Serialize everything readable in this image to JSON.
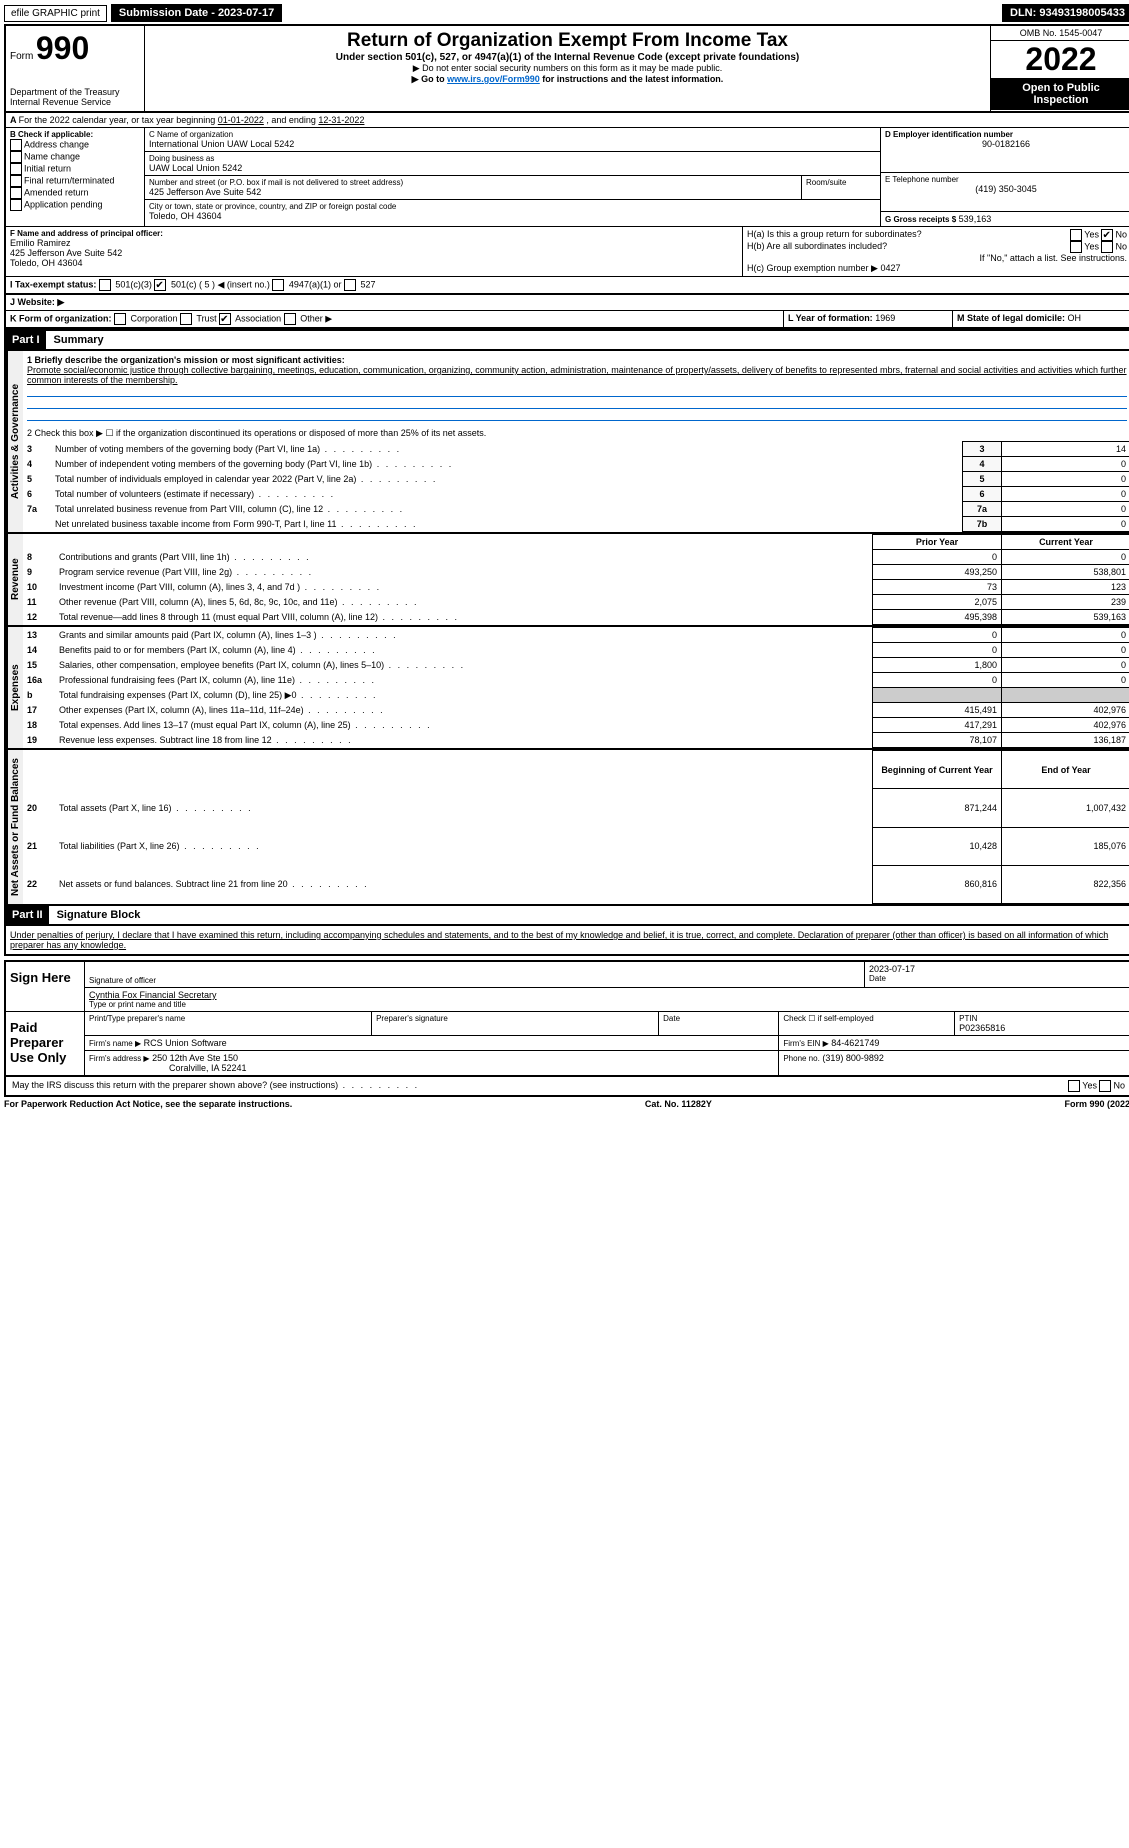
{
  "topbar": {
    "efile": "efile GRAPHIC print",
    "submission": "Submission Date - 2023-07-17",
    "dln": "DLN: 93493198005433"
  },
  "header": {
    "form_prefix": "Form",
    "form_number": "990",
    "dept": "Department of the Treasury",
    "irs": "Internal Revenue Service",
    "title": "Return of Organization Exempt From Income Tax",
    "subtitle": "Under section 501(c), 527, or 4947(a)(1) of the Internal Revenue Code (except private foundations)",
    "note1": "▶ Do not enter social security numbers on this form as it may be made public.",
    "note2_pre": "▶ Go to ",
    "note2_link": "www.irs.gov/Form990",
    "note2_post": " for instructions and the latest information.",
    "omb": "OMB No. 1545-0047",
    "year": "2022",
    "open": "Open to Public Inspection"
  },
  "lineA": {
    "text_pre": "For the 2022 calendar year, or tax year beginning ",
    "begin": "01-01-2022",
    "mid": " , and ending ",
    "end": "12-31-2022"
  },
  "boxB": {
    "label": "B Check if applicable:",
    "opts": [
      "Address change",
      "Name change",
      "Initial return",
      "Final return/terminated",
      "Amended return",
      "Application pending"
    ]
  },
  "boxC": {
    "label": "C Name of organization",
    "name": "International Union UAW Local 5242",
    "dba_label": "Doing business as",
    "dba": "UAW Local Union 5242",
    "street_label": "Number and street (or P.O. box if mail is not delivered to street address)",
    "street": "425 Jefferson Ave Suite 542",
    "room_label": "Room/suite",
    "city_label": "City or town, state or province, country, and ZIP or foreign postal code",
    "city": "Toledo, OH  43604"
  },
  "boxD": {
    "label": "D Employer identification number",
    "ein": "90-0182166"
  },
  "boxE": {
    "label": "E Telephone number",
    "phone": "(419) 350-3045"
  },
  "boxG": {
    "label": "G Gross receipts $",
    "amount": "539,163"
  },
  "boxF": {
    "label": "F Name and address of principal officer:",
    "name": "Emilio Ramirez",
    "addr1": "425 Jefferson Ave Suite 542",
    "addr2": "Toledo, OH  43604"
  },
  "boxH": {
    "a_label": "H(a)  Is this a group return for subordinates?",
    "yes": "Yes",
    "no": "No",
    "b_label": "H(b)  Are all subordinates included?",
    "b_note": "If \"No,\" attach a list. See instructions.",
    "c_label": "H(c)  Group exemption number ▶",
    "c_val": "0427"
  },
  "boxI": {
    "label": "I  Tax-exempt status:",
    "o1": "501(c)(3)",
    "o2": "501(c) ( 5 ) ◀ (insert no.)",
    "o3": "4947(a)(1) or",
    "o4": "527"
  },
  "boxJ": {
    "label": "J  Website: ▶"
  },
  "boxK": {
    "label": "K Form of organization:",
    "opts": [
      "Corporation",
      "Trust",
      "Association",
      "Other ▶"
    ]
  },
  "boxL": {
    "label": "L Year of formation:",
    "val": "1969"
  },
  "boxM": {
    "label": "M State of legal domicile:",
    "val": "OH"
  },
  "part1": {
    "header": "Part I",
    "title": "Summary",
    "q1_label": "1  Briefly describe the organization's mission or most significant activities:",
    "q1_text": "Promote social/economic justice through collective bargaining, meetings, education, communication, organizing, community action, administration, maintenance of property/assets, delivery of benefits to represented mbrs, fraternal and social activities and activities which further common interests of the membership.",
    "q2": "2   Check this box ▶ ☐  if the organization discontinued its operations or disposed of more than 25% of its net assets.",
    "rows_ag": [
      {
        "n": "3",
        "t": "Number of voting members of the governing body (Part VI, line 1a)",
        "k": "3",
        "v": "14"
      },
      {
        "n": "4",
        "t": "Number of independent voting members of the governing body (Part VI, line 1b)",
        "k": "4",
        "v": "0"
      },
      {
        "n": "5",
        "t": "Total number of individuals employed in calendar year 2022 (Part V, line 2a)",
        "k": "5",
        "v": "0"
      },
      {
        "n": "6",
        "t": "Total number of volunteers (estimate if necessary)",
        "k": "6",
        "v": "0"
      },
      {
        "n": "7a",
        "t": "Total unrelated business revenue from Part VIII, column (C), line 12",
        "k": "7a",
        "v": "0"
      },
      {
        "n": "",
        "t": "Net unrelated business taxable income from Form 990-T, Part I, line 11",
        "k": "7b",
        "v": "0"
      }
    ],
    "col_prior": "Prior Year",
    "col_curr": "Current Year",
    "rev_rows": [
      {
        "n": "8",
        "t": "Contributions and grants (Part VIII, line 1h)",
        "p": "0",
        "c": "0"
      },
      {
        "n": "9",
        "t": "Program service revenue (Part VIII, line 2g)",
        "p": "493,250",
        "c": "538,801"
      },
      {
        "n": "10",
        "t": "Investment income (Part VIII, column (A), lines 3, 4, and 7d )",
        "p": "73",
        "c": "123"
      },
      {
        "n": "11",
        "t": "Other revenue (Part VIII, column (A), lines 5, 6d, 8c, 9c, 10c, and 11e)",
        "p": "2,075",
        "c": "239"
      },
      {
        "n": "12",
        "t": "Total revenue—add lines 8 through 11 (must equal Part VIII, column (A), line 12)",
        "p": "495,398",
        "c": "539,163"
      }
    ],
    "exp_rows": [
      {
        "n": "13",
        "t": "Grants and similar amounts paid (Part IX, column (A), lines 1–3 )",
        "p": "0",
        "c": "0"
      },
      {
        "n": "14",
        "t": "Benefits paid to or for members (Part IX, column (A), line 4)",
        "p": "0",
        "c": "0"
      },
      {
        "n": "15",
        "t": "Salaries, other compensation, employee benefits (Part IX, column (A), lines 5–10)",
        "p": "1,800",
        "c": "0"
      },
      {
        "n": "16a",
        "t": "Professional fundraising fees (Part IX, column (A), line 11e)",
        "p": "0",
        "c": "0"
      },
      {
        "n": "b",
        "t": "Total fundraising expenses (Part IX, column (D), line 25) ▶0",
        "p": "",
        "c": ""
      },
      {
        "n": "17",
        "t": "Other expenses (Part IX, column (A), lines 11a–11d, 11f–24e)",
        "p": "415,491",
        "c": "402,976"
      },
      {
        "n": "18",
        "t": "Total expenses. Add lines 13–17 (must equal Part IX, column (A), line 25)",
        "p": "417,291",
        "c": "402,976"
      },
      {
        "n": "19",
        "t": "Revenue less expenses. Subtract line 18 from line 12",
        "p": "78,107",
        "c": "136,187"
      }
    ],
    "col_begin": "Beginning of Current Year",
    "col_end": "End of Year",
    "na_rows": [
      {
        "n": "20",
        "t": "Total assets (Part X, line 16)",
        "p": "871,244",
        "c": "1,007,432"
      },
      {
        "n": "21",
        "t": "Total liabilities (Part X, line 26)",
        "p": "10,428",
        "c": "185,076"
      },
      {
        "n": "22",
        "t": "Net assets or fund balances. Subtract line 21 from line 20",
        "p": "860,816",
        "c": "822,356"
      }
    ],
    "vtab_ag": "Activities & Governance",
    "vtab_rev": "Revenue",
    "vtab_exp": "Expenses",
    "vtab_na": "Net Assets or Fund Balances"
  },
  "part2": {
    "header": "Part II",
    "title": "Signature Block",
    "decl": "Under penalties of perjury, I declare that I have examined this return, including accompanying schedules and statements, and to the best of my knowledge and belief, it is true, correct, and complete. Declaration of preparer (other than officer) is based on all information of which preparer has any knowledge.",
    "sign_here": "Sign Here",
    "sig_officer": "Signature of officer",
    "sig_date": "2023-07-17",
    "date_label": "Date",
    "sig_name": "Cynthia Fox  Financial Secretary",
    "sig_name_label": "Type or print name and title",
    "paid": "Paid Preparer Use Only",
    "prep_name_label": "Print/Type preparer's name",
    "prep_sig_label": "Preparer's signature",
    "prep_date_label": "Date",
    "prep_check": "Check ☐ if self-employed",
    "ptin_label": "PTIN",
    "ptin": "P02365816",
    "firm_name_label": "Firm's name  ▶",
    "firm_name": "RCS Union Software",
    "firm_ein_label": "Firm's EIN ▶",
    "firm_ein": "84-4621749",
    "firm_addr_label": "Firm's address ▶",
    "firm_addr1": "250 12th Ave Ste 150",
    "firm_addr2": "Coralville, IA  52241",
    "firm_phone_label": "Phone no.",
    "firm_phone": "(319) 800-9892",
    "may_irs": "May the IRS discuss this return with the preparer shown above? (see instructions)",
    "yes": "Yes",
    "no": "No"
  },
  "footer": {
    "left": "For Paperwork Reduction Act Notice, see the separate instructions.",
    "mid": "Cat. No. 11282Y",
    "right": "Form 990 (2022)"
  }
}
